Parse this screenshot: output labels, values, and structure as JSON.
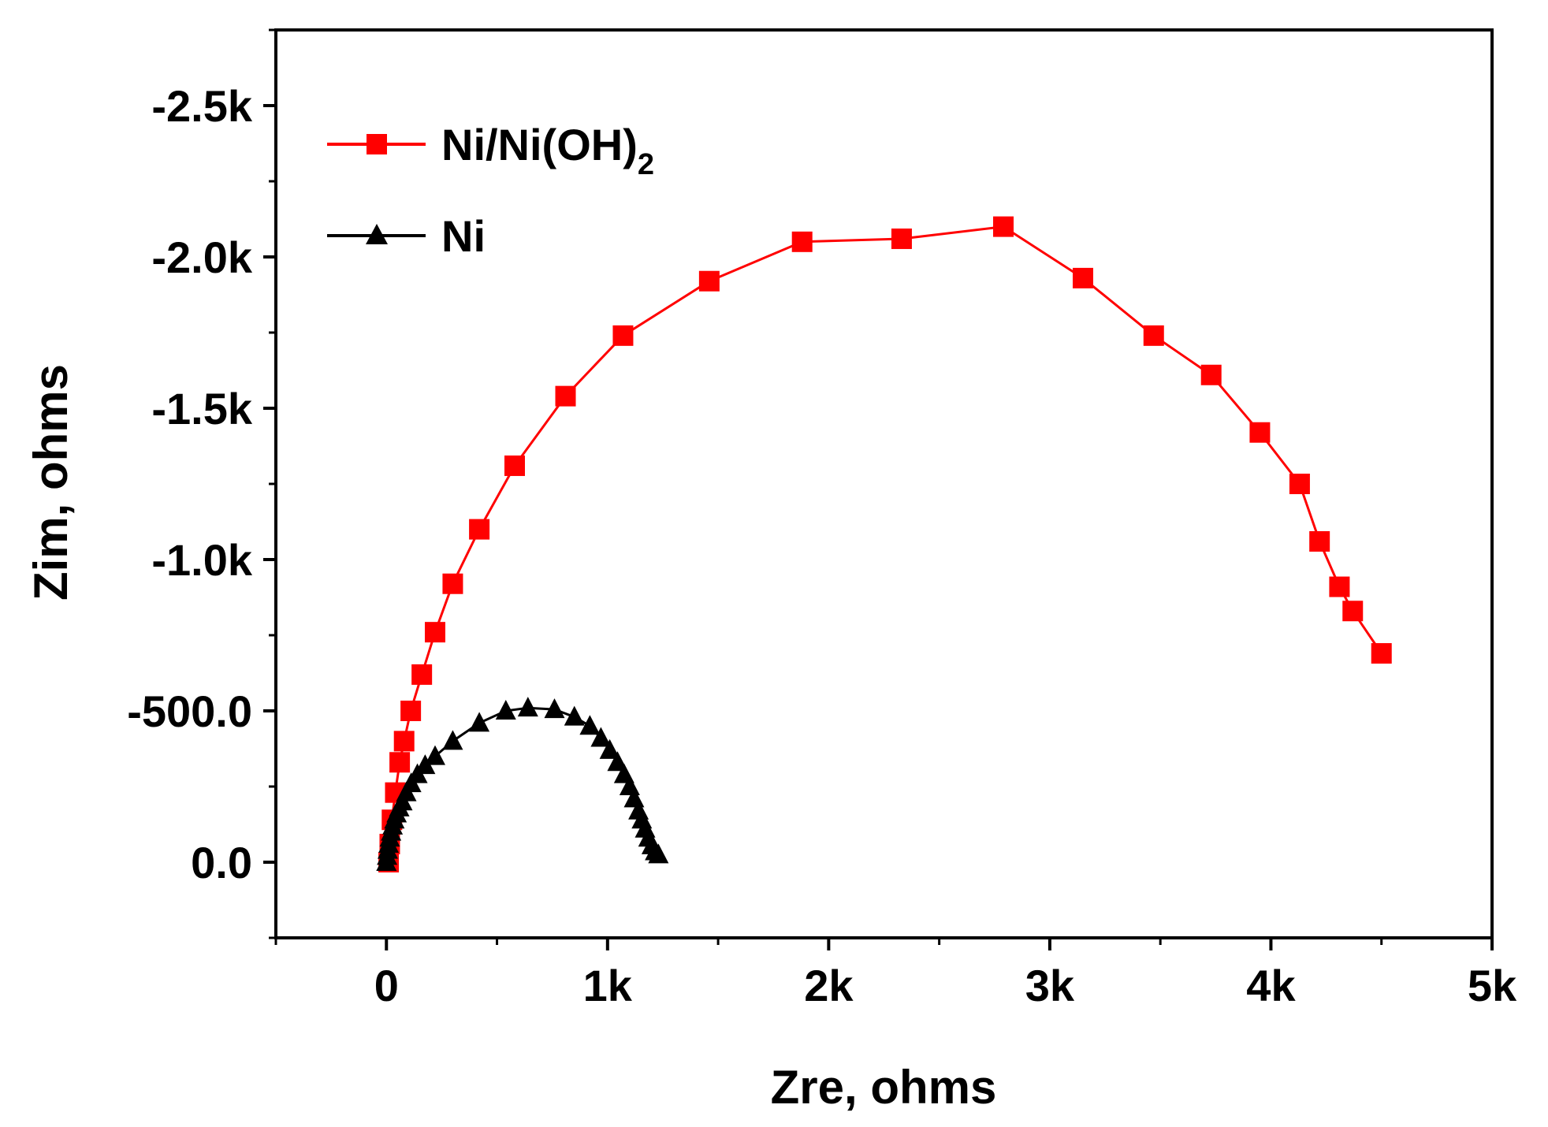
{
  "chart_data": {
    "type": "scatter",
    "title": "",
    "xlabel": "Zre, ohms",
    "ylabel": "Zim, ohms",
    "xlim": [
      -500,
      5000
    ],
    "ylim": [
      250,
      -2750
    ],
    "x_ticks": [
      {
        "value": 0,
        "label": "0"
      },
      {
        "value": 1000,
        "label": "1k"
      },
      {
        "value": 2000,
        "label": "2k"
      },
      {
        "value": 3000,
        "label": "3k"
      },
      {
        "value": 4000,
        "label": "4k"
      },
      {
        "value": 5000,
        "label": "5k"
      }
    ],
    "y_ticks": [
      {
        "value": 0,
        "label": "0.0"
      },
      {
        "value": -500,
        "label": "-500.0"
      },
      {
        "value": -1000,
        "label": "-1.0k"
      },
      {
        "value": -1500,
        "label": "-1.5k"
      },
      {
        "value": -2000,
        "label": "-2.0k"
      },
      {
        "value": -2500,
        "label": "-2.5k"
      }
    ],
    "grid": false,
    "legend": {
      "position": "top-left",
      "entries": [
        {
          "label": "Ni/Ni(OH)",
          "subscript": "2",
          "series": "Ni/Ni(OH)2"
        },
        {
          "label": "Ni",
          "subscript": "",
          "series": "Ni"
        }
      ]
    },
    "series": [
      {
        "name": "Ni/Ni(OH)2",
        "color": "#ff0000",
        "marker": "square",
        "line": "solid",
        "x": [
          10,
          15,
          25,
          40,
          60,
          80,
          110,
          160,
          220,
          300,
          420,
          580,
          810,
          1070,
          1460,
          1880,
          2330,
          2790,
          3150,
          3470,
          3730,
          3950,
          4130,
          4220,
          4310,
          4370,
          4500
        ],
        "y": [
          0,
          -60,
          -140,
          -230,
          -330,
          -400,
          -500,
          -620,
          -760,
          -920,
          -1100,
          -1310,
          -1540,
          -1740,
          -1920,
          -2050,
          -2060,
          -2100,
          -1930,
          -1740,
          -1610,
          -1420,
          -1250,
          -1060,
          -910,
          -830,
          -690
        ]
      },
      {
        "name": "Ni",
        "color": "#000000",
        "marker": "triangle",
        "line": "solid",
        "x": [
          0,
          3,
          6,
          10,
          15,
          21,
          28,
          36,
          46,
          58,
          72,
          90,
          112,
          140,
          175,
          220,
          300,
          420,
          540,
          640,
          760,
          850,
          920,
          970,
          1010,
          1045,
          1075,
          1100,
          1120,
          1140,
          1155,
          1170,
          1185,
          1200,
          1215,
          1230
        ],
        "y": [
          0,
          -20,
          -40,
          -60,
          -80,
          -100,
          -120,
          -140,
          -160,
          -180,
          -200,
          -230,
          -260,
          -290,
          -320,
          -350,
          -400,
          -460,
          -500,
          -510,
          -505,
          -480,
          -450,
          -410,
          -370,
          -330,
          -290,
          -250,
          -210,
          -170,
          -140,
          -110,
          -80,
          -55,
          -35,
          -25
        ]
      }
    ]
  }
}
